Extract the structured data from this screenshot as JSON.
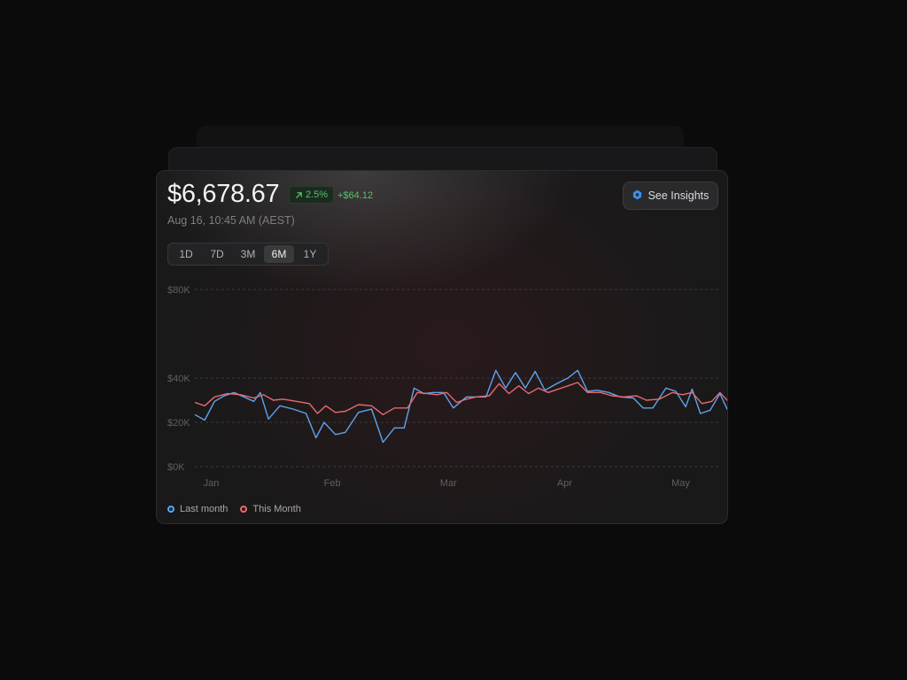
{
  "header": {
    "price": "$6,678.67",
    "change_percent": "2.5%",
    "change_amount": "+$64.12",
    "timestamp": "Aug 16, 10:45 AM (AEST)"
  },
  "insights_button": {
    "label": "See Insights",
    "icon": "hexagon-icon"
  },
  "range_tabs": [
    {
      "label": "1D",
      "active": false
    },
    {
      "label": "7D",
      "active": false
    },
    {
      "label": "3M",
      "active": false
    },
    {
      "label": "6M",
      "active": true
    },
    {
      "label": "1Y",
      "active": false
    }
  ],
  "colors": {
    "positive": "#56c26c",
    "last_month": "#5ea4ec",
    "this_month": "#e8696f",
    "grid": "#3a3a3d",
    "axis_text": "#5f5f63",
    "insights_icon": "#3b8fe6"
  },
  "chart_data": {
    "type": "line",
    "title": "",
    "xlabel": "",
    "ylabel": "",
    "ylim": [
      0,
      80000
    ],
    "yticks": [
      {
        "value": 0,
        "label": "$0K"
      },
      {
        "value": 20000,
        "label": "$20K"
      },
      {
        "value": 40000,
        "label": "$40K"
      },
      {
        "value": 80000,
        "label": "$80K"
      }
    ],
    "xlim": [
      0,
      32
    ],
    "xticks": [
      {
        "value": 1,
        "label": "Jan"
      },
      {
        "value": 8.4,
        "label": "Feb"
      },
      {
        "value": 15.5,
        "label": "Mar"
      },
      {
        "value": 22.6,
        "label": "Apr"
      },
      {
        "value": 29.7,
        "label": "May"
      }
    ],
    "grid": true,
    "legend_position": "bottom-left",
    "series": [
      {
        "name": "Last month",
        "color": "#5ea4ec",
        "points": [
          [
            0,
            23500
          ],
          [
            0.6,
            21000
          ],
          [
            1.2,
            29500
          ],
          [
            1.8,
            32000
          ],
          [
            2.4,
            33500
          ],
          [
            3,
            31500
          ],
          [
            3.6,
            29500
          ],
          [
            4,
            33500
          ],
          [
            4.5,
            21500
          ],
          [
            5.2,
            27500
          ],
          [
            6,
            26000
          ],
          [
            6.8,
            24000
          ],
          [
            7.4,
            13000
          ],
          [
            7.9,
            20000
          ],
          [
            8.6,
            14500
          ],
          [
            9.2,
            15500
          ],
          [
            10,
            24500
          ],
          [
            10.8,
            26000
          ],
          [
            11.5,
            11000
          ],
          [
            12.2,
            17500
          ],
          [
            12.8,
            17500
          ],
          [
            13.4,
            35500
          ],
          [
            14,
            33000
          ],
          [
            14.6,
            33500
          ],
          [
            15.2,
            33500
          ],
          [
            15.8,
            26500
          ],
          [
            16.6,
            31500
          ],
          [
            17.2,
            31500
          ],
          [
            17.8,
            31500
          ],
          [
            18.4,
            43500
          ],
          [
            19,
            35500
          ],
          [
            19.6,
            42500
          ],
          [
            20.2,
            35500
          ],
          [
            20.8,
            43000
          ],
          [
            21.4,
            34500
          ],
          [
            22,
            37000
          ],
          [
            22.8,
            40000
          ],
          [
            23.4,
            43500
          ],
          [
            24,
            34000
          ],
          [
            24.6,
            34500
          ],
          [
            25.3,
            33500
          ],
          [
            26,
            31500
          ],
          [
            26.8,
            31000
          ],
          [
            27.4,
            26500
          ],
          [
            28,
            26500
          ],
          [
            28.8,
            35500
          ],
          [
            29.4,
            34000
          ],
          [
            30,
            27000
          ],
          [
            30.4,
            35000
          ],
          [
            30.9,
            24000
          ],
          [
            31.5,
            25500
          ],
          [
            32.1,
            33000
          ],
          [
            32.6,
            25000
          ]
        ]
      },
      {
        "name": "This Month",
        "color": "#e8696f",
        "points": [
          [
            0,
            29000
          ],
          [
            0.6,
            27500
          ],
          [
            1.2,
            31500
          ],
          [
            2,
            33000
          ],
          [
            2.8,
            32500
          ],
          [
            3.6,
            31000
          ],
          [
            4.2,
            32500
          ],
          [
            4.8,
            30000
          ],
          [
            5.4,
            30500
          ],
          [
            6.2,
            29500
          ],
          [
            7,
            28500
          ],
          [
            7.5,
            24000
          ],
          [
            8,
            27500
          ],
          [
            8.6,
            24500
          ],
          [
            9.2,
            25000
          ],
          [
            10,
            28000
          ],
          [
            10.8,
            27500
          ],
          [
            11.5,
            23500
          ],
          [
            12.2,
            26500
          ],
          [
            13,
            26500
          ],
          [
            13.6,
            33500
          ],
          [
            14.2,
            33000
          ],
          [
            14.8,
            32500
          ],
          [
            15.4,
            33500
          ],
          [
            16,
            29000
          ],
          [
            16.6,
            30500
          ],
          [
            17.2,
            31500
          ],
          [
            18,
            32000
          ],
          [
            18.6,
            37500
          ],
          [
            19.2,
            33000
          ],
          [
            19.8,
            36500
          ],
          [
            20.4,
            33000
          ],
          [
            21,
            35500
          ],
          [
            21.6,
            33500
          ],
          [
            22.4,
            35500
          ],
          [
            23.4,
            38000
          ],
          [
            24,
            33500
          ],
          [
            24.8,
            33500
          ],
          [
            25.5,
            32000
          ],
          [
            26.2,
            31500
          ],
          [
            27,
            32000
          ],
          [
            27.6,
            30000
          ],
          [
            28.4,
            30500
          ],
          [
            29.2,
            33500
          ],
          [
            29.8,
            32500
          ],
          [
            30.4,
            33500
          ],
          [
            31,
            28500
          ],
          [
            31.6,
            29500
          ],
          [
            32.1,
            33500
          ],
          [
            32.6,
            29500
          ]
        ]
      }
    ]
  }
}
